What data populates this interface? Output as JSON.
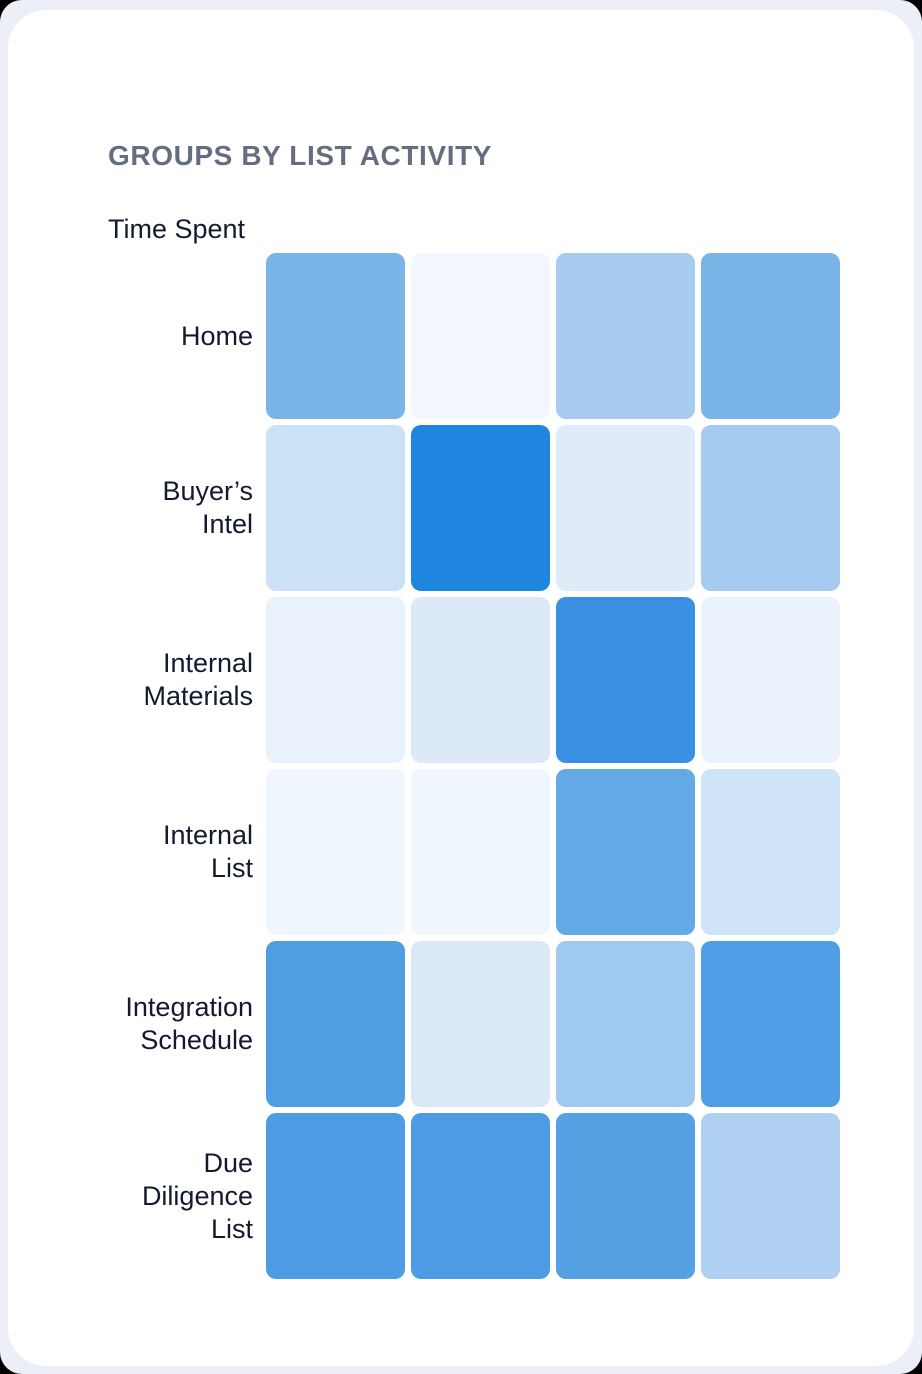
{
  "card": {
    "title": "GROUPS BY LIST ACTIVITY",
    "axis_label": "Time Spent"
  },
  "chart_data": {
    "type": "heatmap",
    "title": "GROUPS BY LIST ACTIVITY",
    "ylabel": "Time Spent",
    "x_axis": {
      "labels_visible": false,
      "num_columns": 4
    },
    "legend": "none",
    "color_scale": {
      "low_color": "#F2F7FD",
      "high_color": "#1E86DF",
      "meaning": "time spent intensity"
    },
    "rows": [
      {
        "label": "Home",
        "colors": [
          "#7BB5E7",
          "#F2F7FD",
          "#A7CCF0",
          "#7AB4E7"
        ],
        "intensity": [
          0.55,
          0.04,
          0.35,
          0.55
        ]
      },
      {
        "label": "Buyer’s\nIntel",
        "colors": [
          "#CBE1F6",
          "#1E86DF",
          "#DFEBF8",
          "#A5CBF0"
        ],
        "intensity": [
          0.22,
          1.0,
          0.13,
          0.36
        ]
      },
      {
        "label": "Internal\nMaterials",
        "colors": [
          "#E9F1FB",
          "#DCEAF8",
          "#3990E2",
          "#EAF2FB"
        ],
        "intensity": [
          0.09,
          0.14,
          0.85,
          0.08
        ]
      },
      {
        "label": "Internal\nList",
        "colors": [
          "#F0F6FD",
          "#EFF6FC",
          "#62A9E5",
          "#D0E4F7"
        ],
        "intensity": [
          0.05,
          0.05,
          0.65,
          0.18
        ]
      },
      {
        "label": "Integration\nSchedule",
        "colors": [
          "#4F9DE3",
          "#DBE9F7",
          "#A0C9EF",
          "#4F9DE4"
        ],
        "intensity": [
          0.72,
          0.14,
          0.38,
          0.72
        ]
      },
      {
        "label": "Due\nDiligence\nList",
        "colors": [
          "#4E9CE3",
          "#4C9BE3",
          "#56A0E4",
          "#AFD0F1"
        ],
        "intensity": [
          0.72,
          0.73,
          0.68,
          0.31
        ]
      }
    ]
  }
}
